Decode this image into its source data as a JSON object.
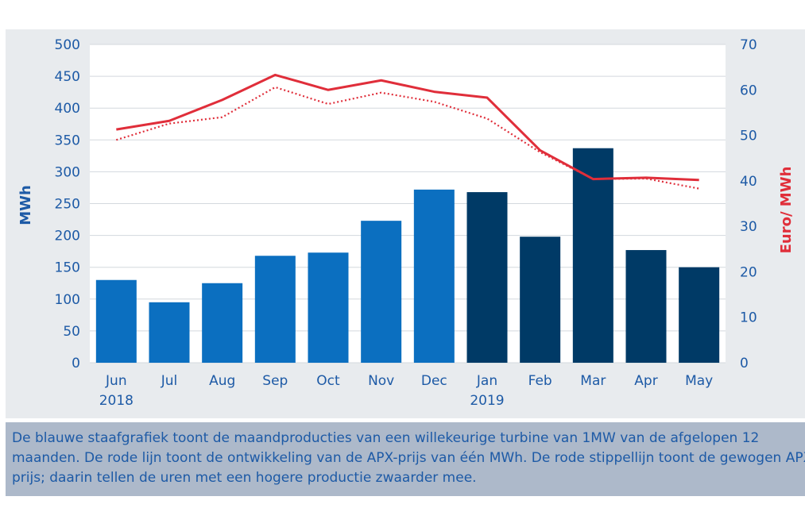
{
  "chart_data": {
    "type": "bar",
    "categories": [
      "Jun",
      "Jul",
      "Aug",
      "Sep",
      "Oct",
      "Nov",
      "Dec",
      "Jan",
      "Feb",
      "Mar",
      "Apr",
      "May"
    ],
    "category_sublabels": [
      "2018",
      "",
      "",
      "",
      "",
      "",
      "",
      "2019",
      "",
      "",
      "",
      ""
    ],
    "values": [
      130,
      95,
      125,
      168,
      173,
      223,
      272,
      268,
      198,
      337,
      177,
      150
    ],
    "bar_colors": [
      "#0b6fc0",
      "#0b6fc0",
      "#0b6fc0",
      "#0b6fc0",
      "#0b6fc0",
      "#0b6fc0",
      "#0b6fc0",
      "#003a66",
      "#003a66",
      "#003a66",
      "#003a66",
      "#003a66"
    ],
    "ylabel": "MWh",
    "ylim": [
      0,
      500
    ],
    "yticks": [
      0,
      50,
      100,
      150,
      200,
      250,
      300,
      350,
      400,
      450,
      500
    ],
    "y2label": "Euro/ MWh",
    "y2lim": [
      0,
      70
    ],
    "y2ticks": [
      0,
      10,
      20,
      30,
      40,
      50,
      60,
      70
    ],
    "grid": true,
    "line_series": [
      {
        "style": "solid",
        "color": "#e02e3a",
        "axis": "right",
        "values": [
          51.3,
          53.2,
          57.8,
          63.3,
          60.0,
          62.1,
          59.6,
          58.3,
          46.7,
          40.4,
          40.7,
          40.2
        ]
      },
      {
        "style": "dotted",
        "color": "#e02e3a",
        "axis": "right",
        "values": [
          49.0,
          52.6,
          54.0,
          60.6,
          56.9,
          59.4,
          57.4,
          53.7,
          46.3,
          40.4,
          40.5,
          38.3
        ]
      }
    ],
    "axis_label_colors": {
      "left": "#1d5aa6",
      "right": "#e02e3a"
    }
  },
  "caption": {
    "lines": [
      "De blauwe staafgrafiek toont de maandproducties van een willekeurige turbine van 1MW van de afgelopen 12",
      "maanden. De rode lijn toont de ontwikkeling van de APX-prijs van één MWh. De rode stippellijn toont de gewogen APX-",
      "prijs; daarin tellen de uren met een hogere productie zwaarder mee."
    ]
  }
}
